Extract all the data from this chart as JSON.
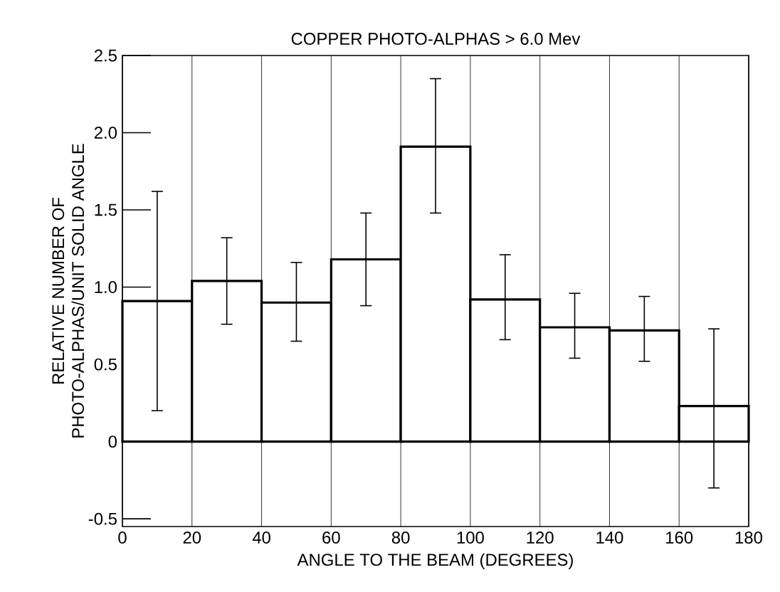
{
  "chart_data": {
    "type": "histogram",
    "title": "COPPER PHOTO-ALPHAS > 6.0 Mev",
    "xlabel": "ANGLE TO THE BEAM (DEGREES)",
    "ylabel": "RELATIVE NUMBER OF\nPHOTO-ALPHAS/UNIT SOLID ANGLE",
    "bins": [
      0,
      20,
      40,
      60,
      80,
      100,
      120,
      140,
      160,
      180
    ],
    "values": [
      0.91,
      1.04,
      0.9,
      1.18,
      1.91,
      0.92,
      0.74,
      0.72,
      0.23
    ],
    "errors": [
      [
        0.2,
        1.62
      ],
      [
        0.76,
        1.32
      ],
      [
        0.65,
        1.16
      ],
      [
        0.88,
        1.48
      ],
      [
        1.48,
        2.35
      ],
      [
        0.66,
        1.21
      ],
      [
        0.54,
        0.96
      ],
      [
        0.52,
        0.94
      ],
      [
        -0.3,
        0.73
      ]
    ],
    "color": "#ffffff",
    "xlim": [
      0,
      180
    ],
    "xticks": [
      0,
      20,
      40,
      60,
      80,
      100,
      120,
      140,
      160,
      180
    ],
    "ylim": [
      -0.55,
      2.5
    ],
    "yticks": [
      {
        "value": -0.5,
        "label": "-0.5"
      },
      0,
      0.5,
      {
        "value": 1,
        "label": "1.0"
      },
      1.5,
      {
        "value": 2,
        "label": "2.0"
      },
      2.5
    ],
    "grid": "x"
  }
}
